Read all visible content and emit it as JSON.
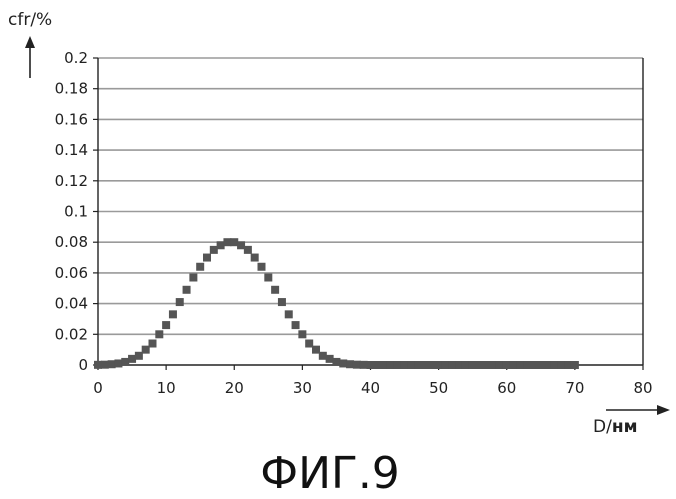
{
  "chart_data": {
    "type": "scatter",
    "title": "",
    "ylabel": "cfr/%",
    "xlabel_prefix": "D/",
    "xlabel_unit": "нм",
    "caption": "ФИГ.9",
    "xlim": [
      0,
      80
    ],
    "ylim": [
      0,
      0.2
    ],
    "x_ticks": [
      0,
      10,
      20,
      30,
      40,
      50,
      60,
      70,
      80
    ],
    "x_tick_labels": [
      "0",
      "10",
      "20",
      "30",
      "40",
      "50",
      "60",
      "70",
      "80"
    ],
    "y_ticks": [
      0,
      0.02,
      0.04,
      0.06,
      0.08,
      0.1,
      0.12,
      0.14,
      0.16,
      0.18,
      0.2
    ],
    "y_tick_labels": [
      "0",
      "0.02",
      "0.04",
      "0.06",
      "0.08",
      "0.1",
      "0.12",
      "0.14",
      "0.16",
      "0.18",
      "0.2"
    ],
    "grid": "horizontal",
    "marker_color": "#555555",
    "series": [
      {
        "x": [
          0,
          1,
          2,
          3,
          4,
          5,
          6,
          7,
          8,
          9,
          10,
          11,
          12,
          13,
          14,
          15,
          16,
          17,
          18,
          19,
          20,
          21,
          22,
          23,
          24,
          25,
          26,
          27,
          28,
          29,
          30,
          31,
          32,
          33,
          34,
          35,
          36,
          37,
          38,
          39,
          40,
          41,
          42,
          43,
          44,
          45,
          46,
          47,
          48,
          49,
          50,
          51,
          52,
          53,
          54,
          55,
          56,
          57,
          58,
          59,
          60,
          61,
          62,
          63,
          64,
          65,
          66,
          67,
          68,
          69,
          70
        ],
        "values": [
          0.0001,
          0.0002,
          0.0005,
          0.001,
          0.002,
          0.004,
          0.006,
          0.01,
          0.014,
          0.02,
          0.026,
          0.033,
          0.041,
          0.049,
          0.057,
          0.064,
          0.07,
          0.075,
          0.078,
          0.08,
          0.08,
          0.078,
          0.075,
          0.07,
          0.064,
          0.057,
          0.049,
          0.041,
          0.033,
          0.026,
          0.02,
          0.014,
          0.01,
          0.006,
          0.004,
          0.002,
          0.001,
          0.0005,
          0.0002,
          0.0001,
          0,
          0,
          0,
          0,
          0,
          0,
          0,
          0,
          0,
          0,
          0,
          0,
          0,
          0,
          0,
          0,
          0,
          0,
          0,
          0,
          0,
          0,
          0,
          0,
          0,
          0,
          0,
          0,
          0,
          0,
          0
        ]
      }
    ]
  }
}
